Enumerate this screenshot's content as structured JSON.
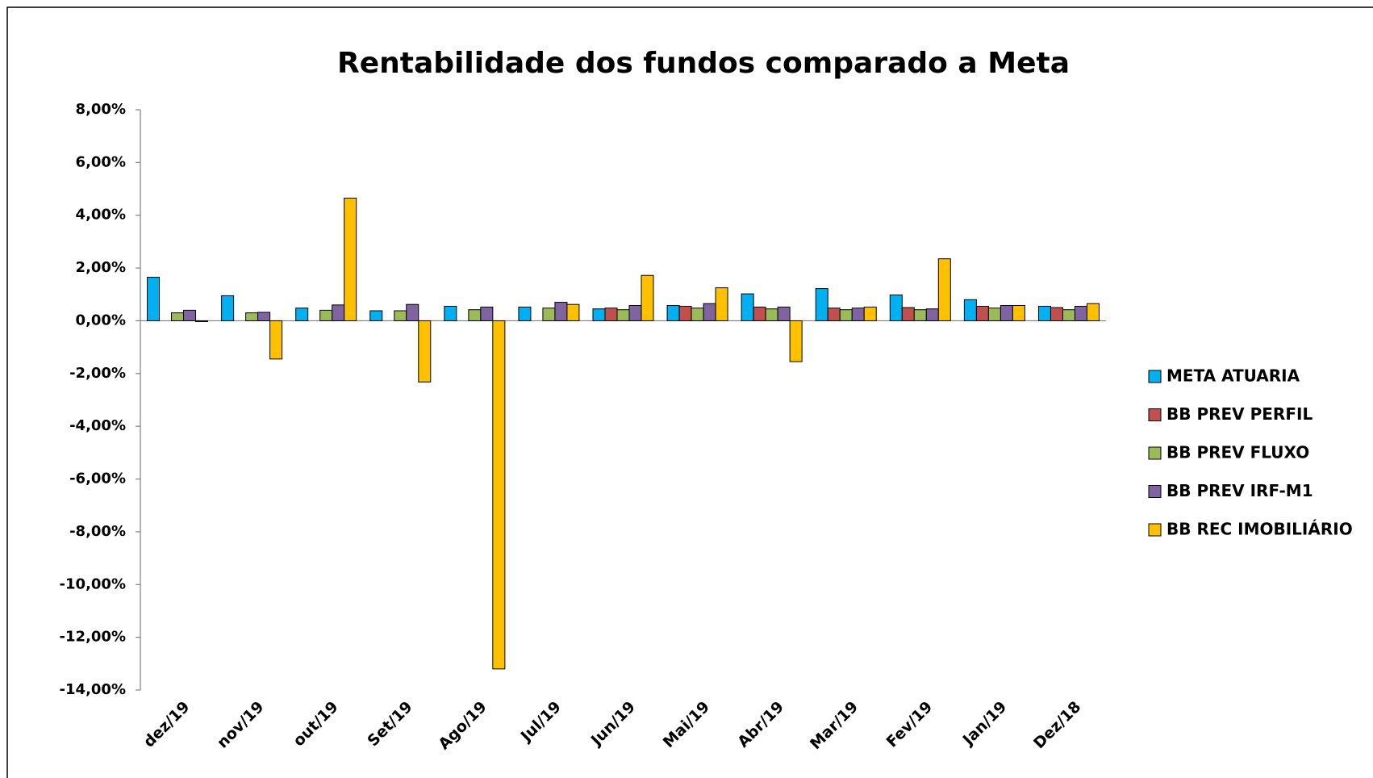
{
  "chart_data": {
    "type": "bar",
    "title": "Rentabilidade dos fundos comparado a Meta",
    "categories": [
      "dez/19",
      "nov/19",
      "out/19",
      "Set/19",
      "Ago/19",
      "Jul/19",
      "Jun/19",
      "Mai/19",
      "Abr/19",
      "Mar/19",
      "Fev/19",
      "Jan/19",
      "Dez/18"
    ],
    "series": [
      {
        "name": "META ATUARIA",
        "color": "#00b0f0",
        "values": [
          1.65,
          0.95,
          0.48,
          0.38,
          0.55,
          0.52,
          0.45,
          0.58,
          1.02,
          1.22,
          0.98,
          0.8,
          0.55
        ]
      },
      {
        "name": "BB PREV PERFIL",
        "color": "#c0504d",
        "values": [
          null,
          null,
          null,
          null,
          null,
          null,
          0.48,
          0.55,
          0.52,
          0.48,
          0.5,
          0.55,
          0.5
        ]
      },
      {
        "name": "BB PREV FLUXO",
        "color": "#9bbb59",
        "values": [
          0.3,
          0.3,
          0.4,
          0.38,
          0.42,
          0.48,
          0.42,
          0.48,
          0.45,
          0.42,
          0.42,
          0.48,
          0.42
        ]
      },
      {
        "name": "BB PREV IRF-M1",
        "color": "#8064a2",
        "values": [
          0.4,
          0.32,
          0.6,
          0.62,
          0.52,
          0.7,
          0.58,
          0.65,
          0.52,
          0.48,
          0.45,
          0.58,
          0.55
        ]
      },
      {
        "name": "BB REC IMOBILIÁRIO",
        "color": "#ffc000",
        "values": [
          -0.03,
          -1.45,
          4.65,
          -2.32,
          -13.2,
          0.62,
          1.72,
          1.25,
          -1.55,
          0.52,
          2.35,
          0.58,
          0.65
        ]
      }
    ],
    "ylim": [
      -14,
      8
    ],
    "yticks": [
      {
        "value": 8,
        "label": "8,00%"
      },
      {
        "value": 6,
        "label": "6,00%"
      },
      {
        "value": 4,
        "label": "4,00%"
      },
      {
        "value": 2,
        "label": "2,00%"
      },
      {
        "value": 0,
        "label": "0,00%"
      },
      {
        "value": -2,
        "label": "-2,00%"
      },
      {
        "value": -4,
        "label": "-4,00%"
      },
      {
        "value": -6,
        "label": "-6,00%"
      },
      {
        "value": -8,
        "label": "-8,00%"
      },
      {
        "value": -10,
        "label": "-10,00%"
      },
      {
        "value": -12,
        "label": "-12,00%"
      },
      {
        "value": -14,
        "label": "-14,00%"
      }
    ],
    "legend": "right",
    "grid": false
  }
}
